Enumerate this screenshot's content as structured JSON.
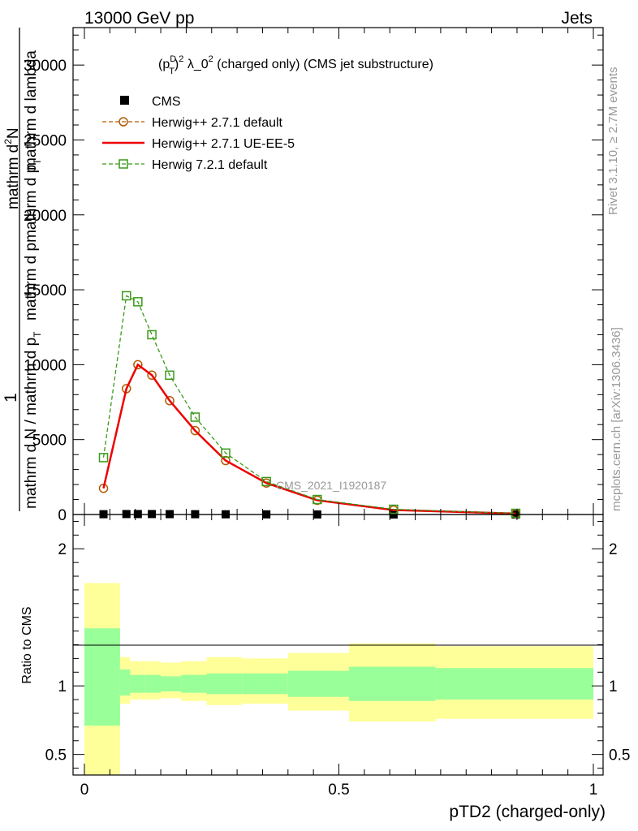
{
  "header": {
    "left": "13000 GeV pp",
    "right": "Jets"
  },
  "side_labels": {
    "rivet": "Rivet 3.1.10, ≥ 2.7M events",
    "mcplots": "mcplots.cern.ch [arXiv:1306.3436]"
  },
  "watermark": "CMS_2021_I1920187",
  "chart_data": [
    {
      "type": "line",
      "title": "(p_T^D)^2 λ_0^2 (charged only) (CMS jet substructure)",
      "title_parts": {
        "open": "(p",
        "sup_d": "D",
        "sub_t": "T",
        "close": ")",
        "sq1": "2",
        "mid": " λ_0",
        "sq2": "2",
        "rest": " (charged only) (CMS jet substructure)"
      },
      "ylabel_parts": {
        "one": "1",
        "den1": "mathrm d N / mathrm d p",
        "den1_sub": "T",
        "den2": "mathrm d pmathrm d p",
        "den2_sub": "T",
        "num": "mathrm d",
        "num_sup": "2",
        "num_n": "N",
        "den3": " mathrm d lambda"
      },
      "xlim": [
        0,
        1
      ],
      "ylim": [
        0,
        32500
      ],
      "yticks": [
        0,
        5000,
        10000,
        15000,
        20000,
        25000,
        30000
      ],
      "ytick_labels": [
        "0",
        "5000",
        "10000",
        "15000",
        "20000",
        "25000",
        "30000"
      ],
      "legend_position": "top-left",
      "series": [
        {
          "name": "CMS",
          "style": "points",
          "color": "#000000",
          "x": [
            0.0375,
            0.0825,
            0.105,
            0.1325,
            0.1675,
            0.2175,
            0.2775,
            0.3575,
            0.4575,
            0.6075,
            0.8475
          ],
          "y": [
            20,
            30,
            30,
            30,
            25,
            20,
            15,
            10,
            5,
            2,
            1
          ]
        },
        {
          "name": "Herwig++ 2.7.1 default",
          "style": "dashed-circle",
          "color": "#b35900",
          "x": [
            0.0375,
            0.0825,
            0.105,
            0.1325,
            0.1675,
            0.2175,
            0.2775,
            0.3575,
            0.4575,
            0.6075,
            0.8475
          ],
          "y": [
            1750,
            8400,
            10000,
            9300,
            7600,
            5600,
            3600,
            2100,
            950,
            300,
            60
          ]
        },
        {
          "name": "Herwig++ 2.7.1 UE-EE-5",
          "style": "solid",
          "color": "#ee0000",
          "x": [
            0.0375,
            0.0825,
            0.105,
            0.1325,
            0.1675,
            0.2175,
            0.2775,
            0.3575,
            0.4575,
            0.6075,
            0.8475
          ],
          "y": [
            1750,
            8400,
            10000,
            9300,
            7600,
            5600,
            3600,
            2100,
            950,
            300,
            60
          ]
        },
        {
          "name": "Herwig 7.2.1 default",
          "style": "dashed-square",
          "color": "#3a9a1a",
          "x": [
            0.0375,
            0.0825,
            0.105,
            0.1325,
            0.1675,
            0.2175,
            0.2775,
            0.3575,
            0.4575,
            0.6075,
            0.8475
          ],
          "y": [
            3800,
            14600,
            14200,
            12000,
            9300,
            6500,
            4100,
            2200,
            1000,
            350,
            80
          ]
        }
      ]
    },
    {
      "type": "area",
      "ylabel": "Ratio to CMS",
      "xlabel": "pTD2 (charged-only)",
      "xlim": [
        0,
        1
      ],
      "ylim": [
        0.35,
        2.25
      ],
      "xticks": [
        0,
        0.5,
        1
      ],
      "xtick_labels": [
        "0",
        "0.5",
        "1"
      ],
      "yticks": [
        0.5,
        1,
        2
      ],
      "ytick_labels": [
        "0.5",
        "1",
        "2"
      ],
      "colors": {
        "stat": "#99ff99",
        "total": "#ffff99"
      },
      "bins": [
        {
          "lo": 0.0,
          "hi": 0.07,
          "inner": [
            0.71,
            1.42
          ],
          "outer": [
            0.35,
            1.75
          ]
        },
        {
          "lo": 0.07,
          "hi": 0.09,
          "inner": [
            0.93,
            1.12
          ],
          "outer": [
            0.87,
            1.21
          ]
        },
        {
          "lo": 0.09,
          "hi": 0.12,
          "inner": [
            0.95,
            1.08
          ],
          "outer": [
            0.9,
            1.18
          ]
        },
        {
          "lo": 0.12,
          "hi": 0.15,
          "inner": [
            0.95,
            1.08
          ],
          "outer": [
            0.9,
            1.18
          ]
        },
        {
          "lo": 0.15,
          "hi": 0.19,
          "inner": [
            0.96,
            1.07
          ],
          "outer": [
            0.91,
            1.17
          ]
        },
        {
          "lo": 0.19,
          "hi": 0.24,
          "inner": [
            0.95,
            1.08
          ],
          "outer": [
            0.89,
            1.18
          ]
        },
        {
          "lo": 0.24,
          "hi": 0.31,
          "inner": [
            0.94,
            1.09
          ],
          "outer": [
            0.86,
            1.21
          ]
        },
        {
          "lo": 0.31,
          "hi": 0.4,
          "inner": [
            0.94,
            1.09
          ],
          "outer": [
            0.87,
            1.2
          ]
        },
        {
          "lo": 0.4,
          "hi": 0.52,
          "inner": [
            0.92,
            1.11
          ],
          "outer": [
            0.82,
            1.24
          ]
        },
        {
          "lo": 0.52,
          "hi": 0.69,
          "inner": [
            0.89,
            1.14
          ],
          "outer": [
            0.74,
            1.31
          ]
        },
        {
          "lo": 0.69,
          "hi": 1.0,
          "inner": [
            0.9,
            1.13
          ],
          "outer": [
            0.76,
            1.29
          ]
        }
      ]
    }
  ]
}
